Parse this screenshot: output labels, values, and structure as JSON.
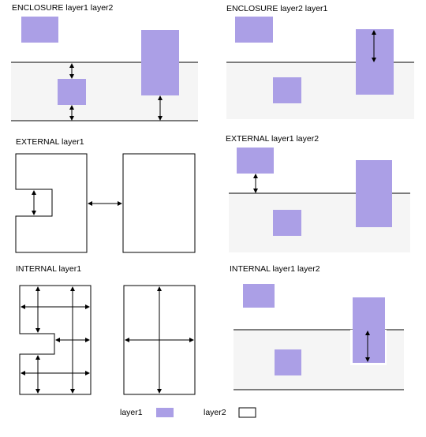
{
  "panels": {
    "enclosure_l1_l2": {
      "title": "ENCLOSURE layer1 layer2"
    },
    "enclosure_l2_l1": {
      "title": "ENCLOSURE layer2 layer1"
    },
    "external_l1": {
      "title": "EXTERNAL layer1"
    },
    "external_l1_l2": {
      "title": "EXTERNAL layer1 layer2"
    },
    "internal_l1": {
      "title": "INTERNAL layer1"
    },
    "internal_l1_l2": {
      "title": "INTERNAL layer1 layer2"
    }
  },
  "legend": {
    "layer1": {
      "label": "layer1",
      "color": "#ab9fe6"
    },
    "layer2": {
      "label": "layer2",
      "color": "#f5f5f5"
    }
  }
}
